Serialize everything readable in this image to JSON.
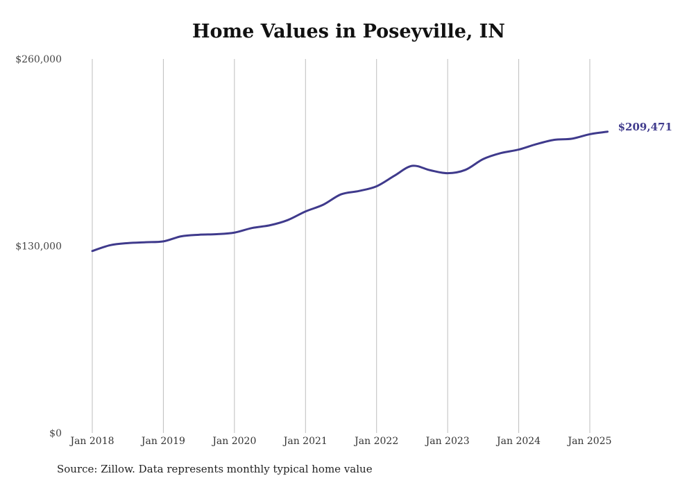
{
  "chart_data": {
    "type": "line",
    "title": "Home Values in Poseyville, IN",
    "xlabel": "",
    "ylabel": "",
    "ylim": [
      0,
      260000
    ],
    "y_ticks": [
      "$0",
      "$130,000",
      "$260,000"
    ],
    "y_tick_values": [
      0,
      130000,
      260000
    ],
    "x_ticks": [
      "Jan 2018",
      "Jan 2019",
      "Jan 2020",
      "Jan 2021",
      "Jan 2022",
      "Jan 2023",
      "Jan 2024",
      "Jan 2025"
    ],
    "grid": "vertical",
    "series": [
      {
        "color": "#3f3a8c",
        "end_label": "$209,471",
        "points": [
          [
            "2018-01",
            126500
          ],
          [
            "2018-04",
            130500
          ],
          [
            "2018-07",
            132000
          ],
          [
            "2018-10",
            132600
          ],
          [
            "2019-01",
            133200
          ],
          [
            "2019-04",
            136700
          ],
          [
            "2019-07",
            137800
          ],
          [
            "2019-10",
            138200
          ],
          [
            "2020-01",
            139300
          ],
          [
            "2020-04",
            142500
          ],
          [
            "2020-07",
            144400
          ],
          [
            "2020-10",
            148000
          ],
          [
            "2021-01",
            154000
          ],
          [
            "2021-04",
            158700
          ],
          [
            "2021-07",
            165900
          ],
          [
            "2021-10",
            168200
          ],
          [
            "2022-01",
            171500
          ],
          [
            "2022-04",
            178800
          ],
          [
            "2022-07",
            185700
          ],
          [
            "2022-10",
            182700
          ],
          [
            "2023-01",
            180600
          ],
          [
            "2023-04",
            182900
          ],
          [
            "2023-07",
            190400
          ],
          [
            "2023-10",
            194600
          ],
          [
            "2024-01",
            197000
          ],
          [
            "2024-04",
            200800
          ],
          [
            "2024-07",
            203800
          ],
          [
            "2024-10",
            204600
          ],
          [
            "2025-01",
            207700
          ],
          [
            "2025-04",
            209471
          ]
        ]
      }
    ]
  },
  "source_text": "Source: Zillow. Data represents monthly typical home value"
}
